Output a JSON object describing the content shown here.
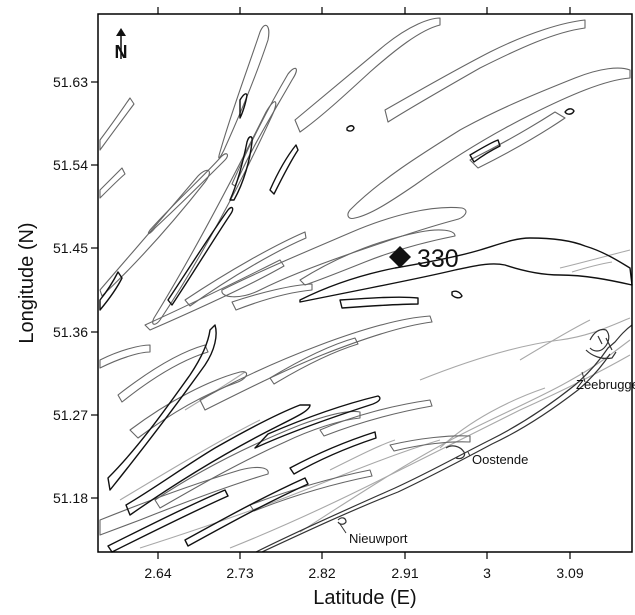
{
  "axes": {
    "x_label": "Latitude (E)",
    "y_label": "Longitude (N)",
    "x_ticks": [
      "2.64",
      "2.73",
      "2.82",
      "2.91",
      "3",
      "3.09"
    ],
    "y_ticks": [
      "51.63",
      "51.54",
      "51.45",
      "51.36",
      "51.27",
      "51.18"
    ]
  },
  "station": {
    "label": "330",
    "marker": "diamond"
  },
  "places": [
    {
      "id": "zeebrugge",
      "label": "Zeebrugge"
    },
    {
      "id": "oostende",
      "label": "Oostende"
    },
    {
      "id": "nieuwport",
      "label": "Nieuwport"
    }
  ],
  "north_arrow": {
    "label": "N",
    "icon": "north-arrow-icon"
  },
  "colors": {
    "contour_dark": "#111111",
    "contour_mid": "#666666",
    "contour_light": "#a8a8a8",
    "frame": "#000000"
  }
}
